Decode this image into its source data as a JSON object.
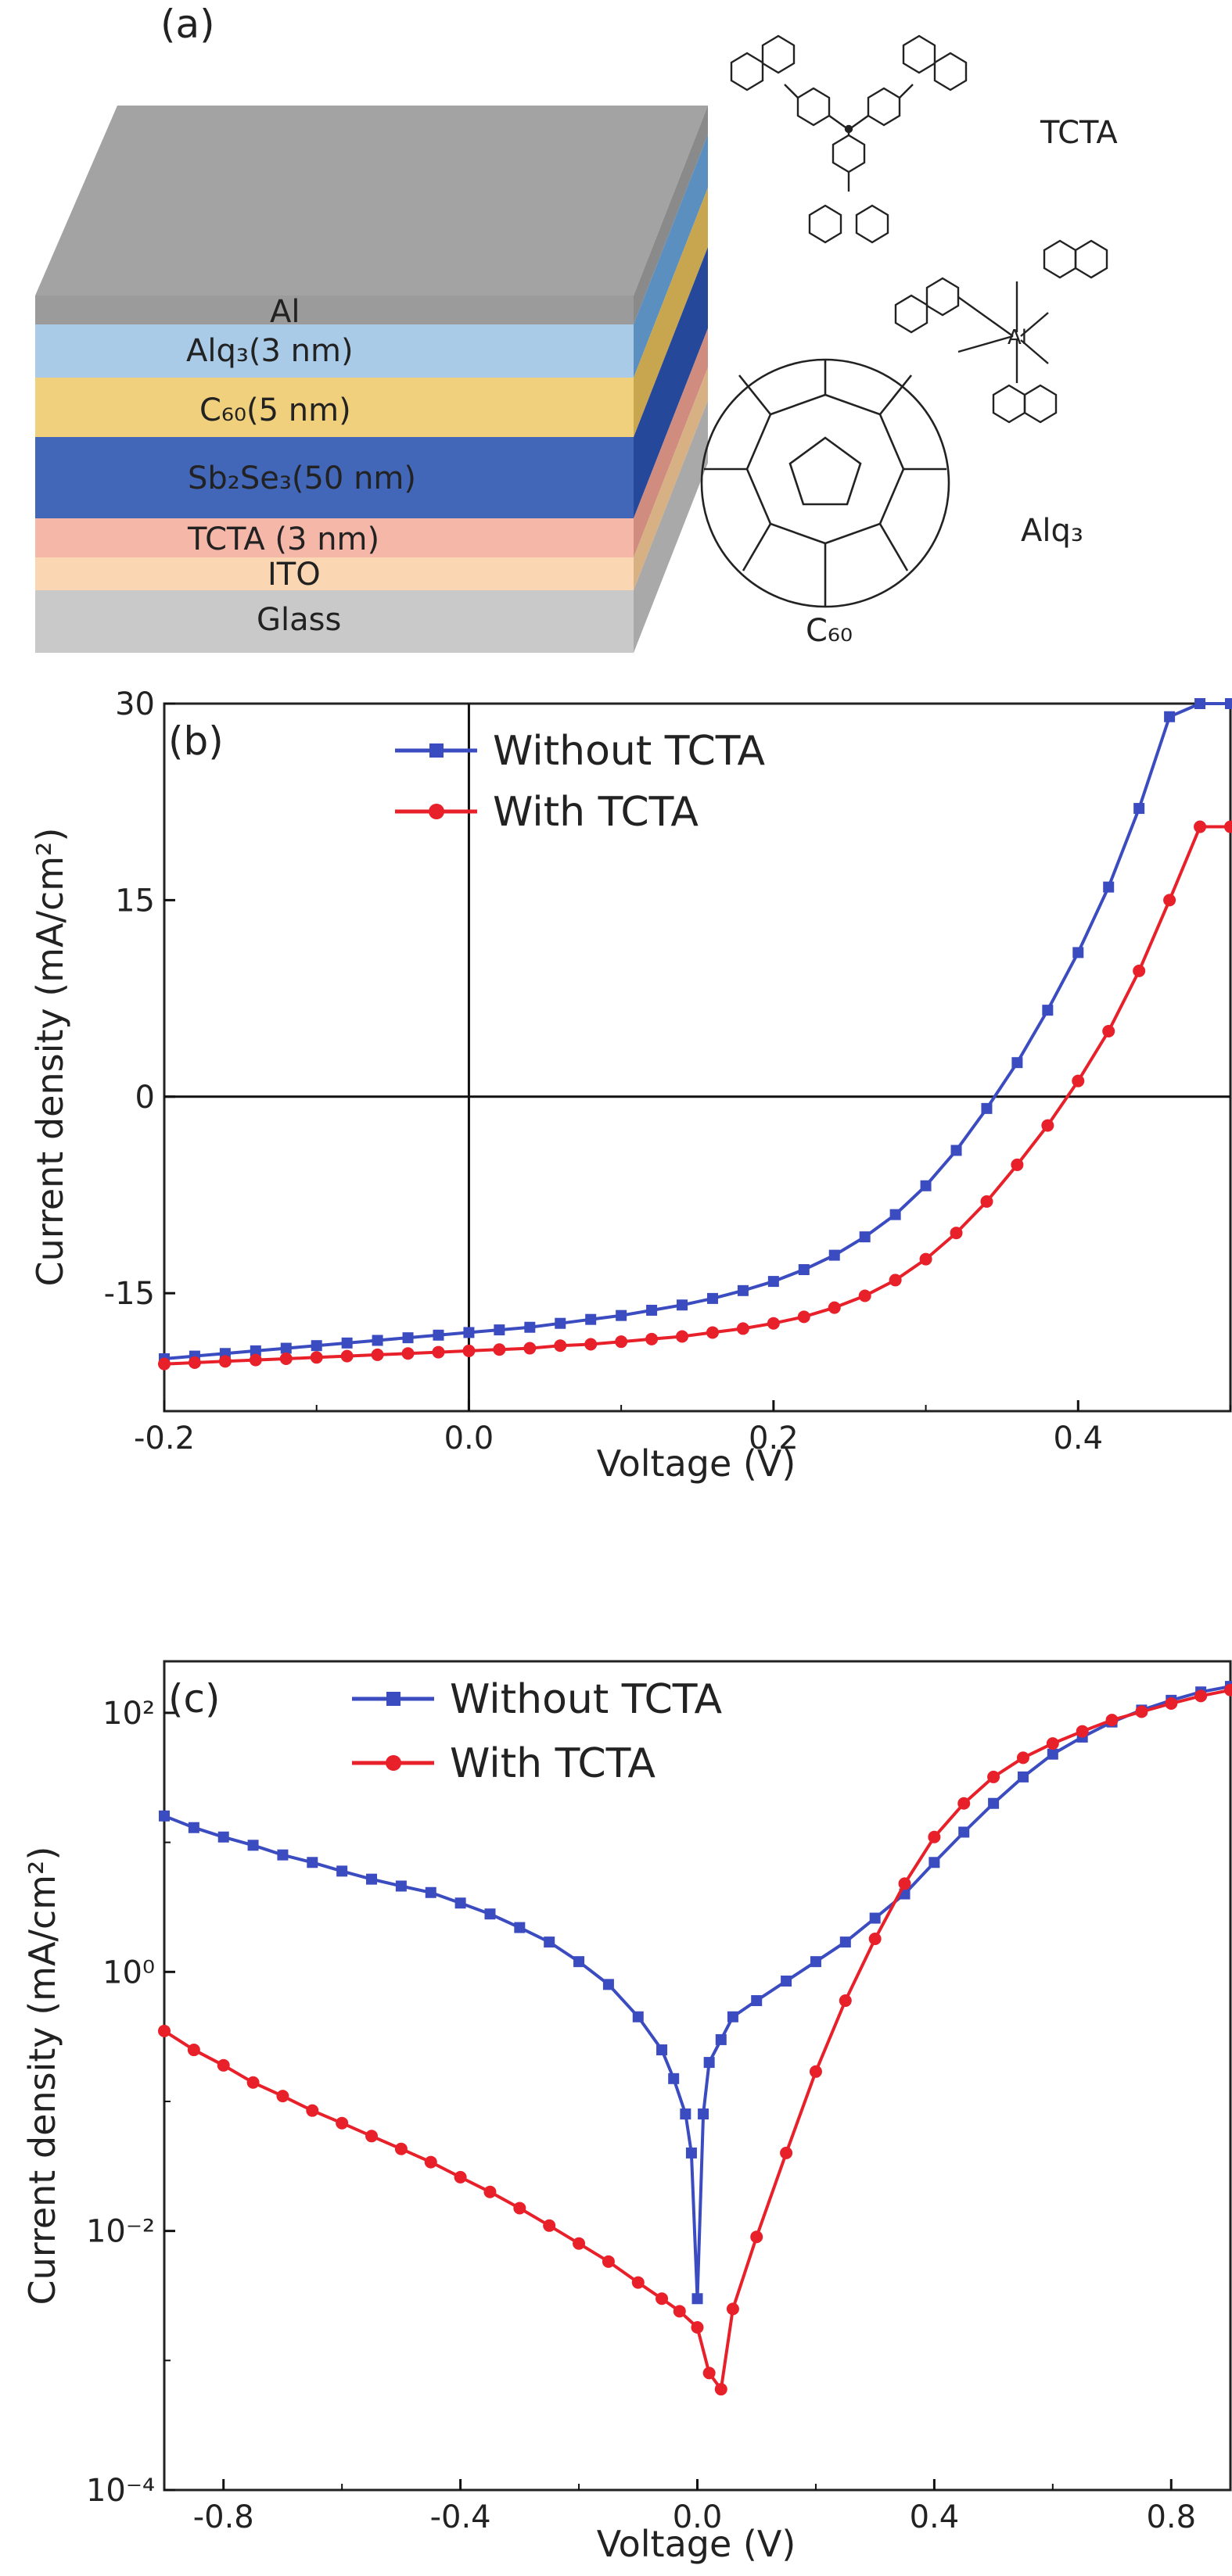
{
  "panel_a": {
    "label": "(a)",
    "layers": [
      {
        "text": "Al",
        "color": "#9b9b9b",
        "side": "#8a8a8a",
        "top": "#a3a3a3"
      },
      {
        "text": "Alq₃(3 nm)",
        "color": "#a9cbe8",
        "side": "#5b8fbf"
      },
      {
        "text": "C₆₀(5 nm)",
        "color": "#f0d07c",
        "side": "#c8a64f"
      },
      {
        "text": "Sb₂Se₃(50 nm)",
        "color": "#4266b8",
        "side": "#26489a"
      },
      {
        "text": "TCTA  (3 nm)",
        "color": "#f5b7a8",
        "side": "#cf8c7f"
      },
      {
        "text": "ITO",
        "color": "#fbd6b3",
        "side": "#d7b184"
      },
      {
        "text": "Glass",
        "color": "#c9c9c9",
        "side": "#a9a9a9"
      }
    ],
    "molecules": {
      "tcta": "TCTA",
      "alq3": "Alq₃",
      "c60": "C₆₀"
    }
  },
  "chart_data": [
    {
      "type": "line",
      "panel_label": "(b)",
      "xlabel": "Voltage (V)",
      "ylabel": "Current density (mA/cm²)",
      "xlim": [
        -0.2,
        0.5
      ],
      "ylim": [
        -24,
        30
      ],
      "xticks": [
        "-0.2",
        "0.0",
        "0.2",
        "0.4"
      ],
      "yticks": [
        "30",
        "15",
        "0",
        "-15"
      ],
      "series": [
        {
          "name": "Without TCTA",
          "color": "#3b4bc0",
          "marker": "square",
          "x": [
            -0.2,
            -0.18,
            -0.16,
            -0.14,
            -0.12,
            -0.1,
            -0.08,
            -0.06,
            -0.04,
            -0.02,
            0.0,
            0.02,
            0.04,
            0.06,
            0.08,
            0.1,
            0.12,
            0.14,
            0.16,
            0.18,
            0.2,
            0.22,
            0.24,
            0.26,
            0.28,
            0.3,
            0.32,
            0.34,
            0.36,
            0.38,
            0.4,
            0.42,
            0.44,
            0.46,
            0.48,
            0.5
          ],
          "y": [
            -20.0,
            -19.8,
            -19.6,
            -19.4,
            -19.2,
            -19.0,
            -18.8,
            -18.6,
            -18.4,
            -18.2,
            -18.0,
            -17.8,
            -17.6,
            -17.3,
            -17.0,
            -16.7,
            -16.3,
            -15.9,
            -15.4,
            -14.8,
            -14.1,
            -13.2,
            -12.1,
            -10.7,
            -9.0,
            -6.8,
            -4.1,
            -0.9,
            2.6,
            6.6,
            11.0,
            16.0,
            22.0,
            29.0,
            30.0,
            30.0
          ]
        },
        {
          "name": "With TCTA",
          "color": "#e8202a",
          "marker": "circle",
          "x": [
            -0.2,
            -0.18,
            -0.16,
            -0.14,
            -0.12,
            -0.1,
            -0.08,
            -0.06,
            -0.04,
            -0.02,
            0.0,
            0.02,
            0.04,
            0.06,
            0.08,
            0.1,
            0.12,
            0.14,
            0.16,
            0.18,
            0.2,
            0.22,
            0.24,
            0.26,
            0.28,
            0.3,
            0.32,
            0.34,
            0.36,
            0.38,
            0.4,
            0.42,
            0.44,
            0.46,
            0.48,
            0.5
          ],
          "y": [
            -20.4,
            -20.3,
            -20.2,
            -20.1,
            -20.0,
            -19.9,
            -19.8,
            -19.7,
            -19.6,
            -19.5,
            -19.4,
            -19.3,
            -19.2,
            -19.0,
            -18.9,
            -18.7,
            -18.5,
            -18.3,
            -18.0,
            -17.7,
            -17.3,
            -16.8,
            -16.1,
            -15.2,
            -14.0,
            -12.4,
            -10.4,
            -8.0,
            -5.2,
            -2.2,
            1.2,
            5.0,
            9.6,
            15.0,
            20.6,
            20.6
          ]
        }
      ]
    },
    {
      "type": "line",
      "panel_label": "(c)",
      "xlabel": "Voltage (V)",
      "ylabel": "Current density (mA/cm²)",
      "xlim": [
        -0.9,
        0.9
      ],
      "ylim": [
        0.0001,
        250
      ],
      "yscale": "log",
      "xticks": [
        "-0.8",
        "-0.4",
        "0.0",
        "0.4",
        "0.8"
      ],
      "yticks": [
        "10²",
        "10⁰",
        "10⁻²",
        "10⁻⁴"
      ],
      "series": [
        {
          "name": "Without TCTA",
          "color": "#3b4bc0",
          "marker": "square",
          "x": [
            -0.9,
            -0.85,
            -0.8,
            -0.75,
            -0.7,
            -0.65,
            -0.6,
            -0.55,
            -0.5,
            -0.45,
            -0.4,
            -0.35,
            -0.3,
            -0.25,
            -0.2,
            -0.15,
            -0.1,
            -0.06,
            -0.04,
            -0.02,
            -0.01,
            0.0,
            0.01,
            0.02,
            0.04,
            0.06,
            0.1,
            0.15,
            0.2,
            0.25,
            0.3,
            0.35,
            0.4,
            0.45,
            0.5,
            0.55,
            0.6,
            0.65,
            0.7,
            0.75,
            0.8,
            0.85,
            0.9
          ],
          "y": [
            16,
            13,
            11,
            9.5,
            8,
            7,
            6,
            5.2,
            4.6,
            4.1,
            3.4,
            2.8,
            2.2,
            1.7,
            1.2,
            0.8,
            0.45,
            0.25,
            0.15,
            0.08,
            0.04,
            0.003,
            0.08,
            0.2,
            0.3,
            0.45,
            0.6,
            0.85,
            1.2,
            1.7,
            2.6,
            4,
            7,
            12,
            20,
            32,
            48,
            65,
            85,
            105,
            125,
            145,
            160
          ]
        },
        {
          "name": "With TCTA",
          "color": "#e8202a",
          "marker": "circle",
          "x": [
            -0.9,
            -0.85,
            -0.8,
            -0.75,
            -0.7,
            -0.65,
            -0.6,
            -0.55,
            -0.5,
            -0.45,
            -0.4,
            -0.35,
            -0.3,
            -0.25,
            -0.2,
            -0.15,
            -0.1,
            -0.06,
            -0.03,
            0.0,
            0.02,
            0.04,
            0.06,
            0.1,
            0.15,
            0.2,
            0.25,
            0.3,
            0.35,
            0.4,
            0.45,
            0.5,
            0.55,
            0.6,
            0.65,
            0.7,
            0.75,
            0.8,
            0.85,
            0.9
          ],
          "y": [
            0.35,
            0.25,
            0.19,
            0.14,
            0.11,
            0.085,
            0.068,
            0.054,
            0.043,
            0.034,
            0.026,
            0.02,
            0.015,
            0.011,
            0.008,
            0.0058,
            0.004,
            0.003,
            0.0024,
            0.0018,
            0.0008,
            0.0006,
            0.0025,
            0.009,
            0.04,
            0.17,
            0.6,
            1.8,
            4.8,
            11,
            20,
            32,
            45,
            58,
            72,
            88,
            102,
            118,
            135,
            150
          ]
        }
      ]
    }
  ]
}
